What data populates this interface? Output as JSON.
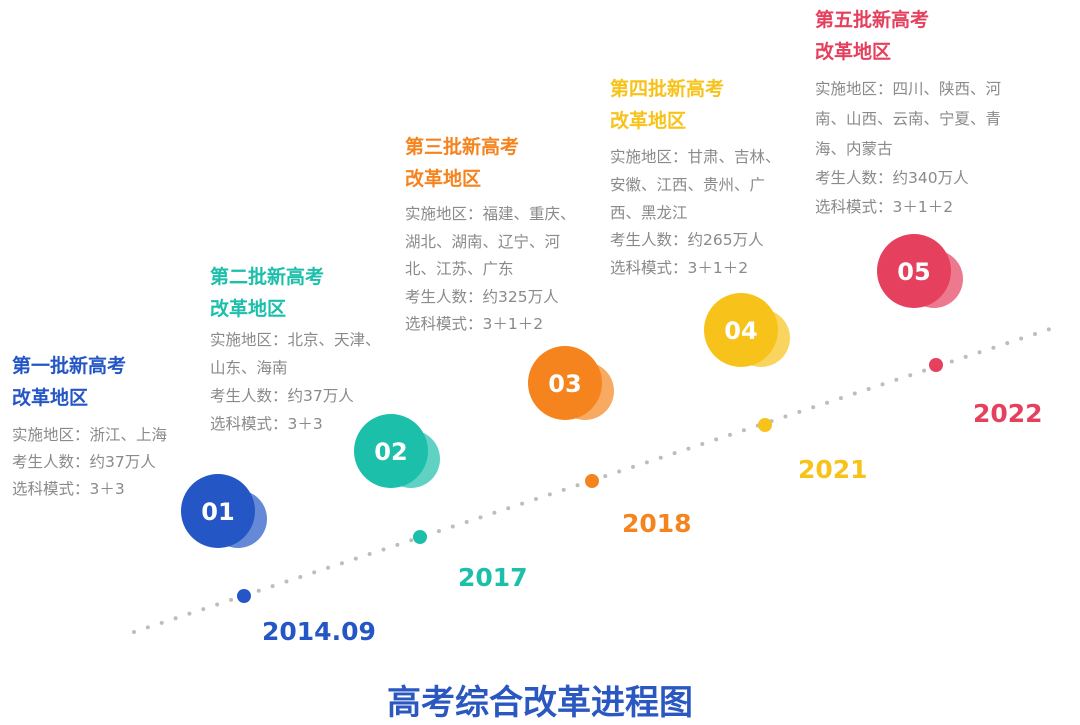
{
  "title": "高考综合改革进程图",
  "milestones": [
    {
      "number": "01",
      "year": "2014.09",
      "heading": [
        "第一批新高考",
        "改革地区"
      ],
      "details": [
        "实施地区：浙江、上海",
        "考生人数：约37万人",
        "选科模式：3＋3"
      ]
    },
    {
      "number": "02",
      "year": "2017",
      "heading": [
        "第二批新高考",
        "改革地区"
      ],
      "details": [
        "实施地区：北京、天津、",
        "山东、海南",
        "考生人数：约37万人",
        "选科模式：3＋3"
      ]
    },
    {
      "number": "03",
      "year": "2018",
      "heading": [
        "第三批新高考",
        "改革地区"
      ],
      "details": [
        "实施地区：福建、重庆、",
        "湖北、湖南、辽宁、河",
        "北、江苏、广东",
        "考生人数：约325万人",
        "选科模式：3＋1＋2"
      ]
    },
    {
      "number": "04",
      "year": "2021",
      "heading": [
        "第四批新高考",
        "改革地区"
      ],
      "details": [
        "实施地区：甘肃、吉林、",
        "安徽、江西、贵州、广",
        "西、黑龙江",
        "考生人数：约265万人",
        "选科模式：3＋1＋2"
      ]
    },
    {
      "number": "05",
      "year": "2022",
      "heading": [
        "第五批新高考",
        "改革地区"
      ],
      "details": [
        "实施地区：四川、陕西、河",
        "南、山西、云南、宁夏、青",
        "海、内蒙古",
        "考生人数：约340万人",
        "选科模式：3＋1＋2"
      ]
    }
  ]
}
